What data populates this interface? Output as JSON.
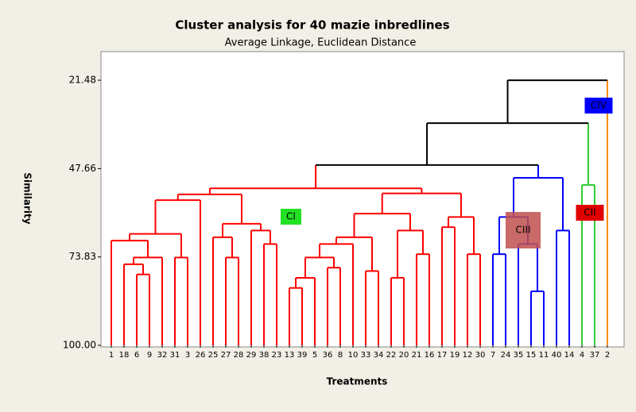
{
  "chart_data": {
    "type": "dendrogram",
    "title": "Cluster analysis  for 40 mazie inbredlines",
    "subtitle": "Average Linkage, Euclidean Distance",
    "x_label": "Treatments",
    "y_label": "Similarity",
    "ylim": [
      100,
      13
    ],
    "yticks": [
      21.48,
      47.66,
      73.83,
      {
        "value": 100,
        "label": "100.00"
      }
    ],
    "leaves": [
      "1",
      "18",
      "6",
      "9",
      "32",
      "31",
      "3",
      "26",
      "25",
      "27",
      "28",
      "29",
      "38",
      "23",
      "13",
      "39",
      "5",
      "36",
      "8",
      "10",
      "33",
      "34",
      "22",
      "20",
      "21",
      "16",
      "17",
      "19",
      "12",
      "30",
      "7",
      "24",
      "35",
      "15",
      "11",
      "40",
      "14",
      "4",
      "37",
      "2"
    ],
    "leaf_colors": [
      "#ff0000",
      "#ff0000",
      "#ff0000",
      "#ff0000",
      "#ff0000",
      "#ff0000",
      "#ff0000",
      "#ff0000",
      "#ff0000",
      "#ff0000",
      "#ff0000",
      "#ff0000",
      "#ff0000",
      "#ff0000",
      "#ff0000",
      "#ff0000",
      "#ff0000",
      "#ff0000",
      "#ff0000",
      "#ff0000",
      "#ff0000",
      "#ff0000",
      "#ff0000",
      "#ff0000",
      "#ff0000",
      "#ff0000",
      "#ff0000",
      "#ff0000",
      "#ff0000",
      "#ff0000",
      "#0000ff",
      "#0000ff",
      "#0000ff",
      "#0000ff",
      "#0000ff",
      "#0000ff",
      "#0000ff",
      "#33cc33",
      "#33cc33",
      "#ff8c00"
    ],
    "merges": [
      {
        "left": 2,
        "right": 3,
        "height": 79,
        "color": "#ff0000"
      },
      {
        "left": 1,
        "right": 40,
        "height": 76,
        "color": "#ff0000"
      },
      {
        "left": 41,
        "right": 4,
        "height": 74,
        "color": "#ff0000"
      },
      {
        "left": 0,
        "right": 42,
        "height": 69,
        "color": "#ff0000"
      },
      {
        "left": 5,
        "right": 6,
        "height": 74,
        "color": "#ff0000"
      },
      {
        "left": 43,
        "right": 44,
        "height": 67,
        "color": "#ff0000"
      },
      {
        "left": 45,
        "right": 7,
        "height": 57,
        "color": "#ff0000"
      },
      {
        "left": 9,
        "right": 10,
        "height": 74,
        "color": "#ff0000"
      },
      {
        "left": 8,
        "right": 47,
        "height": 68,
        "color": "#ff0000"
      },
      {
        "left": 12,
        "right": 13,
        "height": 70,
        "color": "#ff0000"
      },
      {
        "left": 11,
        "right": 49,
        "height": 66,
        "color": "#ff0000"
      },
      {
        "left": 48,
        "right": 50,
        "height": 64,
        "color": "#ff0000"
      },
      {
        "left": 46,
        "right": 51,
        "height": 55.3,
        "color": "#ff0000"
      },
      {
        "left": 14,
        "right": 15,
        "height": 83,
        "color": "#ff0000"
      },
      {
        "left": 53,
        "right": 16,
        "height": 80,
        "color": "#ff0000"
      },
      {
        "left": 17,
        "right": 18,
        "height": 77,
        "color": "#ff0000"
      },
      {
        "left": 54,
        "right": 55,
        "height": 74,
        "color": "#ff0000"
      },
      {
        "left": 56,
        "right": 19,
        "height": 70,
        "color": "#ff0000"
      },
      {
        "left": 20,
        "right": 21,
        "height": 78,
        "color": "#ff0000"
      },
      {
        "left": 57,
        "right": 58,
        "height": 68,
        "color": "#ff0000"
      },
      {
        "left": 22,
        "right": 23,
        "height": 80,
        "color": "#ff0000"
      },
      {
        "left": 24,
        "right": 25,
        "height": 73,
        "color": "#ff0000"
      },
      {
        "left": 60,
        "right": 61,
        "height": 66,
        "color": "#ff0000"
      },
      {
        "left": 59,
        "right": 62,
        "height": 61,
        "color": "#ff0000"
      },
      {
        "left": 26,
        "right": 27,
        "height": 65,
        "color": "#ff0000"
      },
      {
        "left": 28,
        "right": 29,
        "height": 73,
        "color": "#ff0000"
      },
      {
        "left": 64,
        "right": 65,
        "height": 62,
        "color": "#ff0000"
      },
      {
        "left": 63,
        "right": 66,
        "height": 55,
        "color": "#ff0000"
      },
      {
        "left": 52,
        "right": 67,
        "height": 53.5,
        "color": "#ff0000"
      },
      {
        "left": 33,
        "right": 34,
        "height": 84,
        "color": "#0000ff"
      },
      {
        "left": 32,
        "right": 69,
        "height": 70,
        "color": "#0000ff"
      },
      {
        "left": 30,
        "right": 31,
        "height": 73,
        "color": "#0000ff"
      },
      {
        "left": 71,
        "right": 70,
        "height": 62,
        "color": "#0000ff"
      },
      {
        "left": 35,
        "right": 36,
        "height": 66,
        "color": "#0000ff"
      },
      {
        "left": 72,
        "right": 73,
        "height": 50.4,
        "color": "#0000ff"
      },
      {
        "left": 37,
        "right": 38,
        "height": 52.5,
        "color": "#33cc33"
      },
      {
        "left": 68,
        "right": 74,
        "height": 46.6,
        "color": "#000000"
      },
      {
        "left": 76,
        "right": 75,
        "height": 34.2,
        "color": "#000000"
      },
      {
        "left": 77,
        "right": 39,
        "height": 21.48,
        "color": "#000000"
      }
    ],
    "annotations": [
      {
        "text": "CI",
        "color": "#22e022"
      },
      {
        "text": "CII",
        "color": "#e00000"
      },
      {
        "text": "CIII",
        "color": "#c0504d"
      },
      {
        "text": "CIV",
        "color": "#0000ff"
      }
    ]
  }
}
